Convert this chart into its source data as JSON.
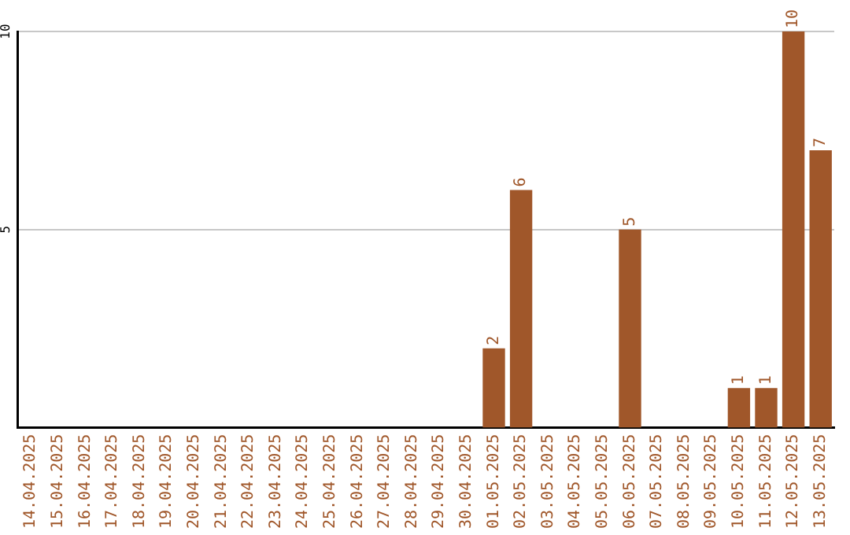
{
  "chart_data": {
    "type": "bar",
    "categories": [
      "14.04.2025",
      "15.04.2025",
      "16.04.2025",
      "17.04.2025",
      "18.04.2025",
      "19.04.2025",
      "20.04.2025",
      "21.04.2025",
      "22.04.2025",
      "23.04.2025",
      "24.04.2025",
      "25.04.2025",
      "26.04.2025",
      "27.04.2025",
      "28.04.2025",
      "29.04.2025",
      "30.04.2025",
      "01.05.2025",
      "02.05.2025",
      "03.05.2025",
      "04.05.2025",
      "05.05.2025",
      "06.05.2025",
      "07.05.2025",
      "08.05.2025",
      "09.05.2025",
      "10.05.2025",
      "11.05.2025",
      "12.05.2025",
      "13.05.2025"
    ],
    "values": [
      0,
      0,
      0,
      0,
      0,
      0,
      0,
      0,
      0,
      0,
      0,
      0,
      0,
      0,
      0,
      0,
      0,
      2,
      6,
      0,
      0,
      0,
      5,
      0,
      0,
      0,
      1,
      1,
      10,
      7
    ],
    "value_labels": [
      null,
      null,
      null,
      null,
      null,
      null,
      null,
      null,
      null,
      null,
      null,
      null,
      null,
      null,
      null,
      null,
      null,
      "2",
      "6",
      null,
      null,
      null,
      "5",
      null,
      null,
      null,
      "1",
      "1",
      "10",
      "7"
    ],
    "color": "#a0572a",
    "ylim": [
      0,
      10
    ],
    "yticks": [
      5,
      10
    ],
    "grid": "y",
    "legend": false
  }
}
